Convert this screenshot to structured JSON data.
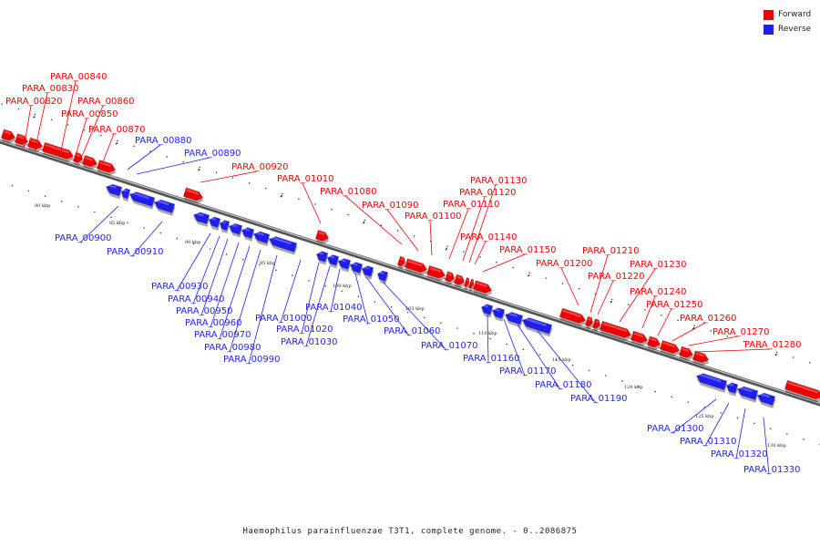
{
  "legend": {
    "forward_label": "Forward",
    "reverse_label": "Reverse",
    "forward_color": "#ee0000",
    "reverse_color": "#1f1fee"
  },
  "caption": "Haemophilus parainfluenzae T3T1, complete genome. - 0..2086875",
  "ruler_labels": [
    "80 kbp",
    "85 kbp",
    "90 kbp",
    "95 kbp",
    "100 kbp",
    "105 kbp",
    "110 kbp",
    "115 kbp",
    "120 kbp",
    "125 kbp",
    "130 kbp"
  ],
  "forward_genes": [
    "PARA_00820",
    "PARA_00830",
    "PARA_00840",
    "PARA_00850",
    "PARA_00860",
    "PARA_00870",
    "PARA_00920",
    "PARA_01010",
    "PARA_01080",
    "PARA_01090",
    "PARA_01100",
    "PARA_01110",
    "PARA_01120",
    "PARA_01130",
    "PARA_01140",
    "PARA_01150",
    "PARA_01200",
    "PARA_01210",
    "PARA_01220",
    "PARA_01230",
    "PARA_01240",
    "PARA_01250",
    "PARA_01260",
    "PARA_01270",
    "PARA_01280"
  ],
  "reverse_genes": [
    "PARA_00880",
    "PARA_00890",
    "PARA_00900",
    "PARA_00910",
    "PARA_00930",
    "PARA_00940",
    "PARA_00950",
    "PARA_00960",
    "PARA_00970",
    "PARA_00980",
    "PARA_00990",
    "PARA_01000",
    "PARA_01020",
    "PARA_01030",
    "PARA_01040",
    "PARA_01050",
    "PARA_01060",
    "PARA_01070",
    "PARA_01160",
    "PARA_01170",
    "PARA_01180",
    "PARA_01190",
    "PARA_01300",
    "PARA_01310",
    "PARA_01320",
    "PARA_01330"
  ]
}
